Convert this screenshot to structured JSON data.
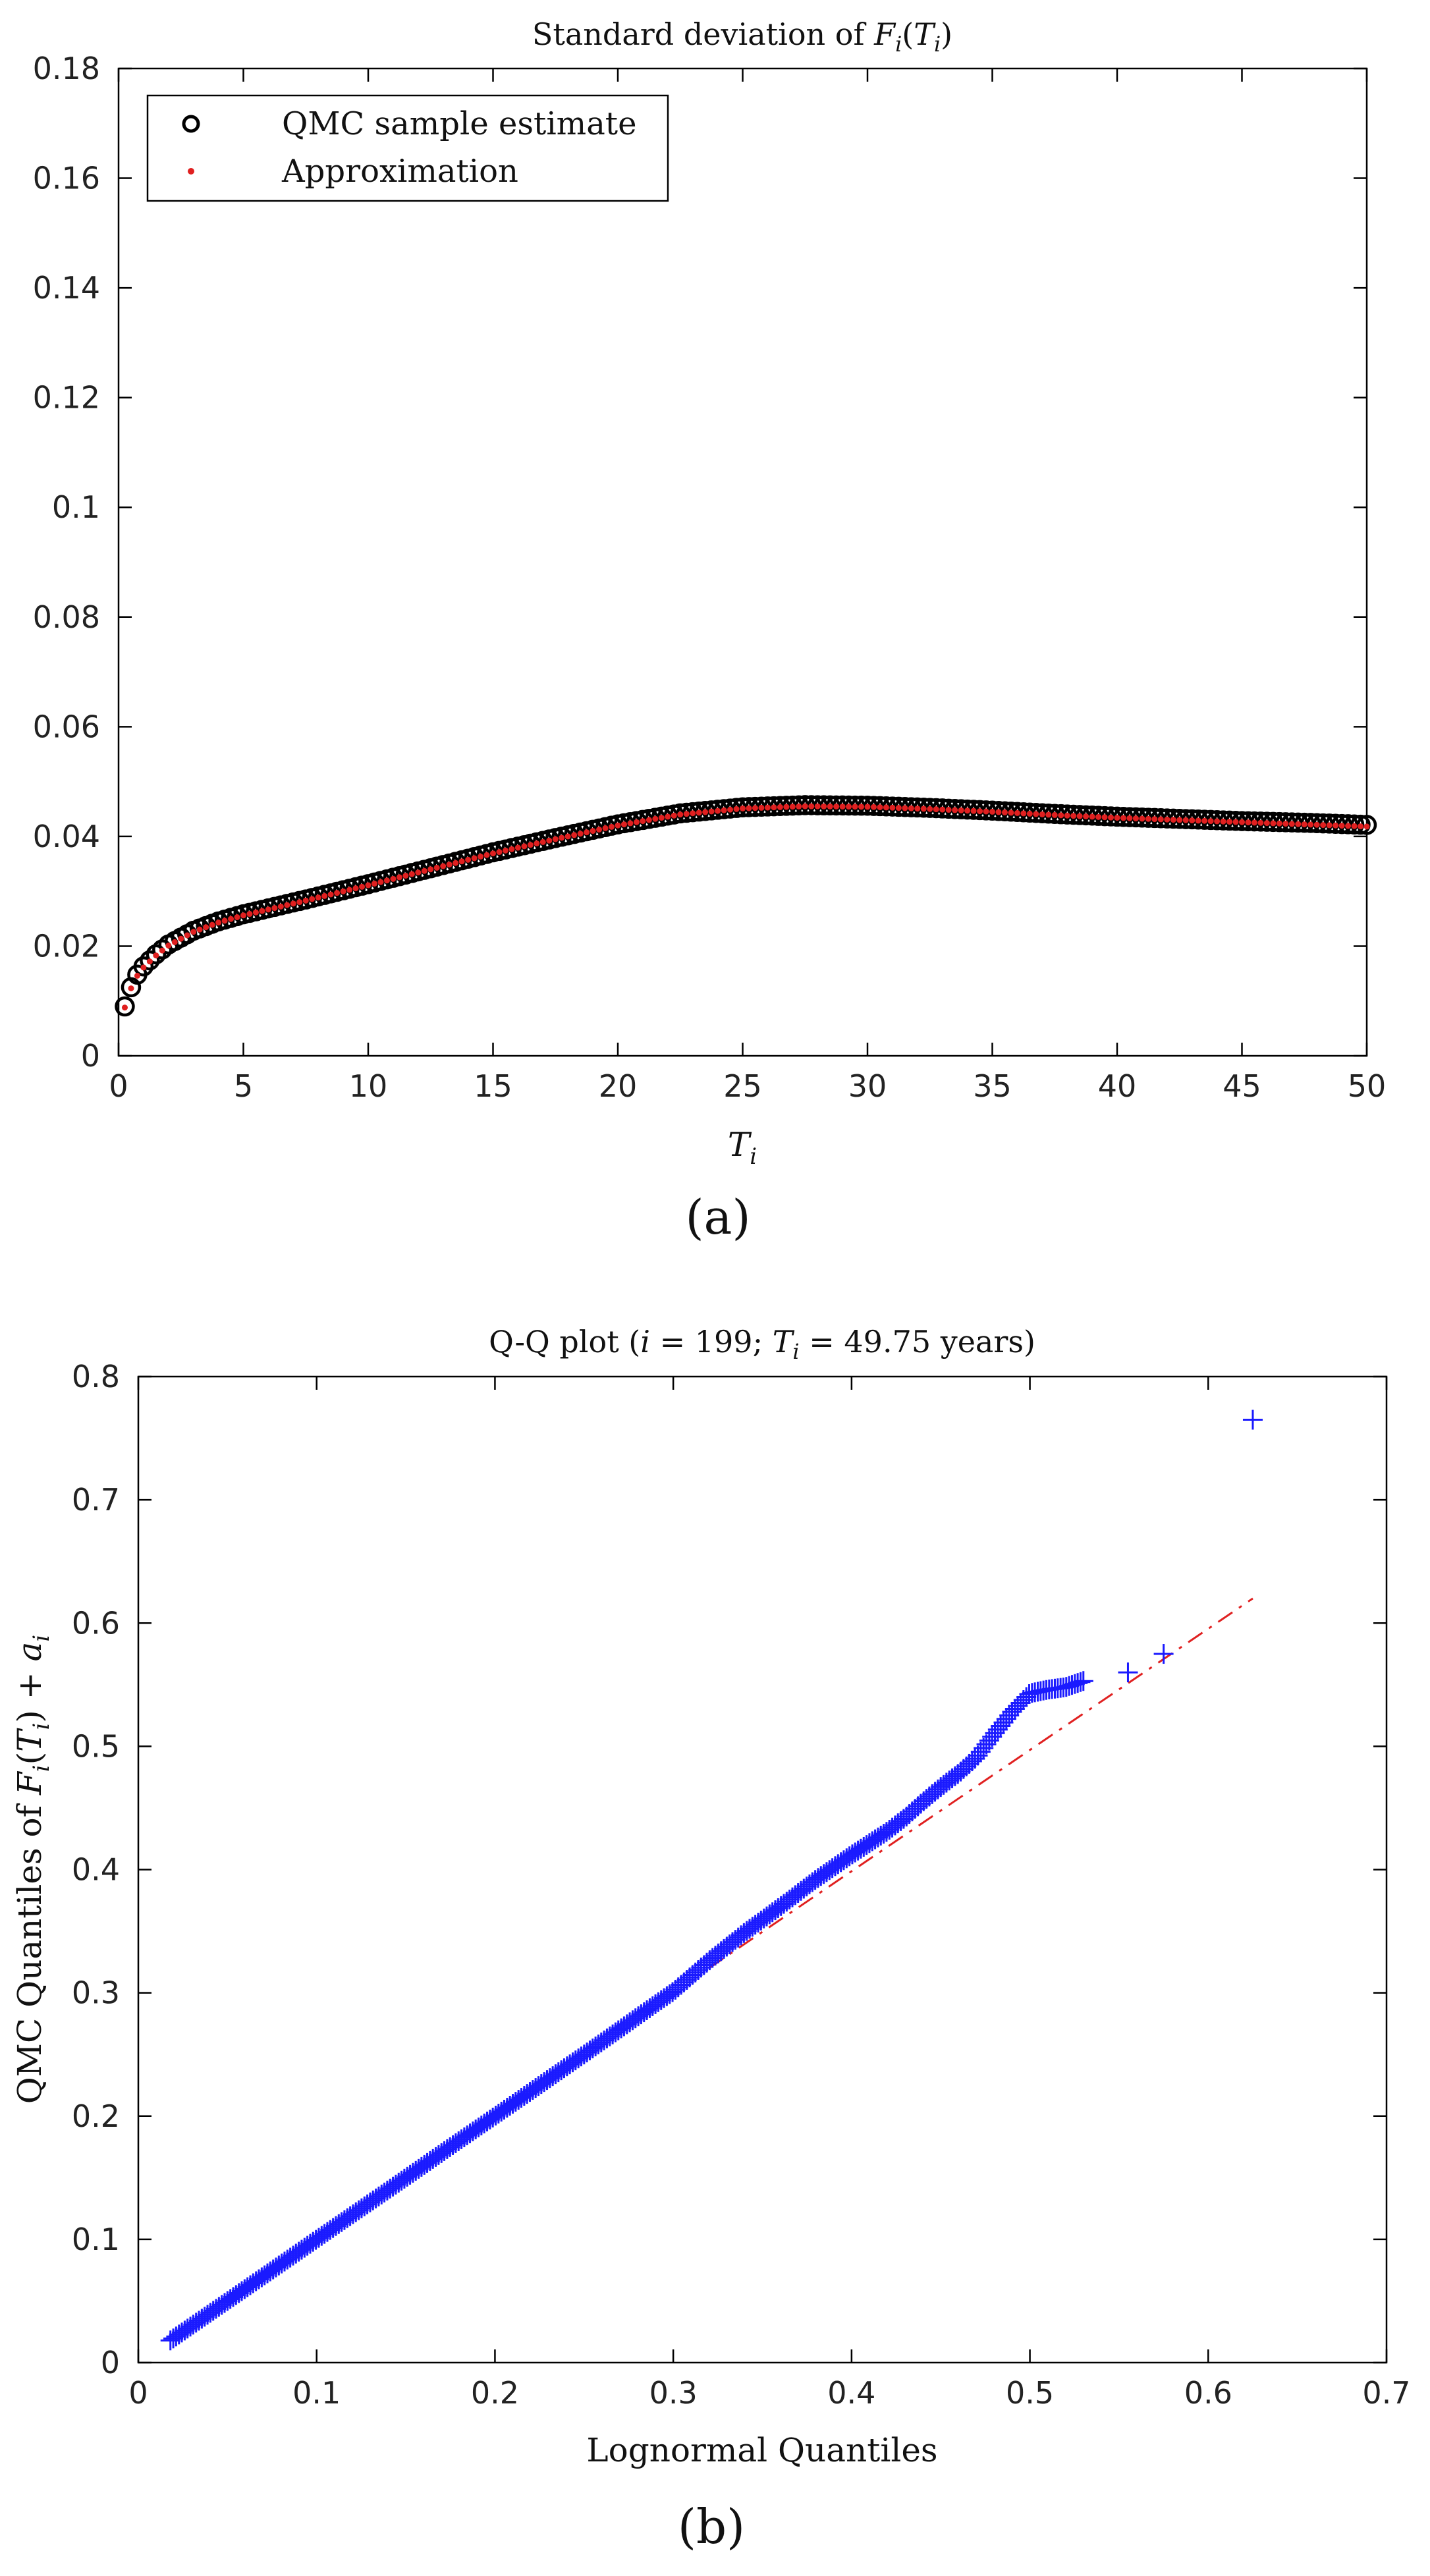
{
  "chart_data": [
    {
      "id": "a",
      "type": "scatter",
      "title": "Standard deviation of F_i(T_i)",
      "title_parts": {
        "prefix": "Standard deviation of ",
        "F": "F",
        "sub": "i",
        "T": "T"
      },
      "xlabel": "T_i",
      "ylabel": "",
      "xlim": [
        0,
        50
      ],
      "ylim": [
        0,
        0.18
      ],
      "xticks": [
        0,
        5,
        10,
        15,
        20,
        25,
        30,
        35,
        40,
        45,
        50
      ],
      "xtick_labels": [
        "0",
        "5",
        "10",
        "15",
        "20",
        "25",
        "30",
        "35",
        "40",
        "45",
        "50"
      ],
      "yticks": [
        0,
        0.02,
        0.04,
        0.06,
        0.08,
        0.1,
        0.12,
        0.14,
        0.16,
        0.18
      ],
      "ytick_labels": [
        "0",
        "0.02",
        "0.04",
        "0.06",
        "0.08",
        "0.1",
        "0.12",
        "0.14",
        "0.16",
        "0.18"
      ],
      "legend": {
        "position": "top-left",
        "entries": [
          "QMC sample estimate",
          "Approximation"
        ]
      },
      "series": [
        {
          "name": "QMC sample estimate",
          "marker": "circle",
          "color": "#000000",
          "x": [
            0.25,
            0.5,
            0.75,
            1,
            1.5,
            2,
            3,
            4,
            5,
            7.5,
            10,
            12.5,
            15,
            17.5,
            20,
            22.5,
            25,
            27.5,
            30,
            32.5,
            35,
            37.5,
            40,
            42.5,
            45,
            47.5,
            50
          ],
          "values": [
            0.009,
            0.0125,
            0.0148,
            0.0163,
            0.0185,
            0.0203,
            0.0228,
            0.0245,
            0.0258,
            0.0285,
            0.0313,
            0.0342,
            0.0371,
            0.0397,
            0.0422,
            0.0442,
            0.0453,
            0.0457,
            0.0456,
            0.0452,
            0.0447,
            0.0441,
            0.0436,
            0.0432,
            0.0428,
            0.0425,
            0.0421
          ]
        },
        {
          "name": "Approximation",
          "marker": "dot",
          "color": "#e02020",
          "x": [
            0.25,
            0.5,
            0.75,
            1,
            1.5,
            2,
            3,
            4,
            5,
            7.5,
            10,
            12.5,
            15,
            17.5,
            20,
            22.5,
            25,
            27.5,
            30,
            32.5,
            35,
            37.5,
            40,
            42.5,
            45,
            47.5,
            50
          ],
          "values": [
            0.0088,
            0.0123,
            0.0146,
            0.0161,
            0.0183,
            0.0201,
            0.0226,
            0.0243,
            0.0256,
            0.0283,
            0.0311,
            0.034,
            0.0369,
            0.0395,
            0.042,
            0.044,
            0.0451,
            0.0455,
            0.0454,
            0.045,
            0.0445,
            0.0439,
            0.0434,
            0.043,
            0.0426,
            0.0422,
            0.0418
          ]
        }
      ]
    },
    {
      "id": "b",
      "type": "scatter",
      "title": "Q-Q plot (i = 199; T_i = 49.75 years)",
      "title_parts": {
        "prefix": "Q-Q plot (",
        "i": "i",
        "eq1": " = 199; ",
        "T": "T",
        "sub": "i",
        "eq2": " = 49.75 years)"
      },
      "xlabel": "Lognormal Quantiles",
      "ylabel": "QMC Quantiles of F_i(T_i) + a_i",
      "ylabel_parts": {
        "prefix": "QMC Quantiles of ",
        "F": "F",
        "sub": "i",
        "T": "T",
        "plus": " + ",
        "a": "a"
      },
      "xlim": [
        0,
        0.7
      ],
      "ylim": [
        0,
        0.8
      ],
      "xticks": [
        0,
        0.1,
        0.2,
        0.3,
        0.4,
        0.5,
        0.6,
        0.7
      ],
      "xtick_labels": [
        "0",
        "0.1",
        "0.2",
        "0.3",
        "0.4",
        "0.5",
        "0.6",
        "0.7"
      ],
      "yticks": [
        0,
        0.1,
        0.2,
        0.3,
        0.4,
        0.5,
        0.6,
        0.7,
        0.8
      ],
      "ytick_labels": [
        "0",
        "0.1",
        "0.2",
        "0.3",
        "0.4",
        "0.5",
        "0.6",
        "0.7",
        "0.8"
      ],
      "series": [
        {
          "name": "QMC quantiles",
          "marker": "plus",
          "color": "#1a1aff",
          "x": [
            0.018,
            0.05,
            0.1,
            0.15,
            0.2,
            0.25,
            0.3,
            0.32,
            0.34,
            0.36,
            0.38,
            0.4,
            0.42,
            0.43,
            0.44,
            0.45,
            0.46,
            0.47,
            0.48,
            0.49,
            0.5,
            0.51,
            0.52,
            0.53,
            0.555,
            0.575,
            0.625
          ],
          "values": [
            0.018,
            0.05,
            0.1,
            0.15,
            0.2,
            0.25,
            0.301,
            0.326,
            0.349,
            0.37,
            0.392,
            0.412,
            0.431,
            0.442,
            0.455,
            0.467,
            0.478,
            0.491,
            0.51,
            0.528,
            0.543,
            0.546,
            0.548,
            0.553,
            0.56,
            0.575,
            0.765
          ]
        },
        {
          "name": "Reference line",
          "marker": "line-dashdot",
          "color": "#e02020",
          "x": [
            0.32,
            0.625
          ],
          "values": [
            0.32,
            0.62
          ]
        }
      ]
    }
  ],
  "panel_labels": [
    "(a)",
    "(b)"
  ]
}
